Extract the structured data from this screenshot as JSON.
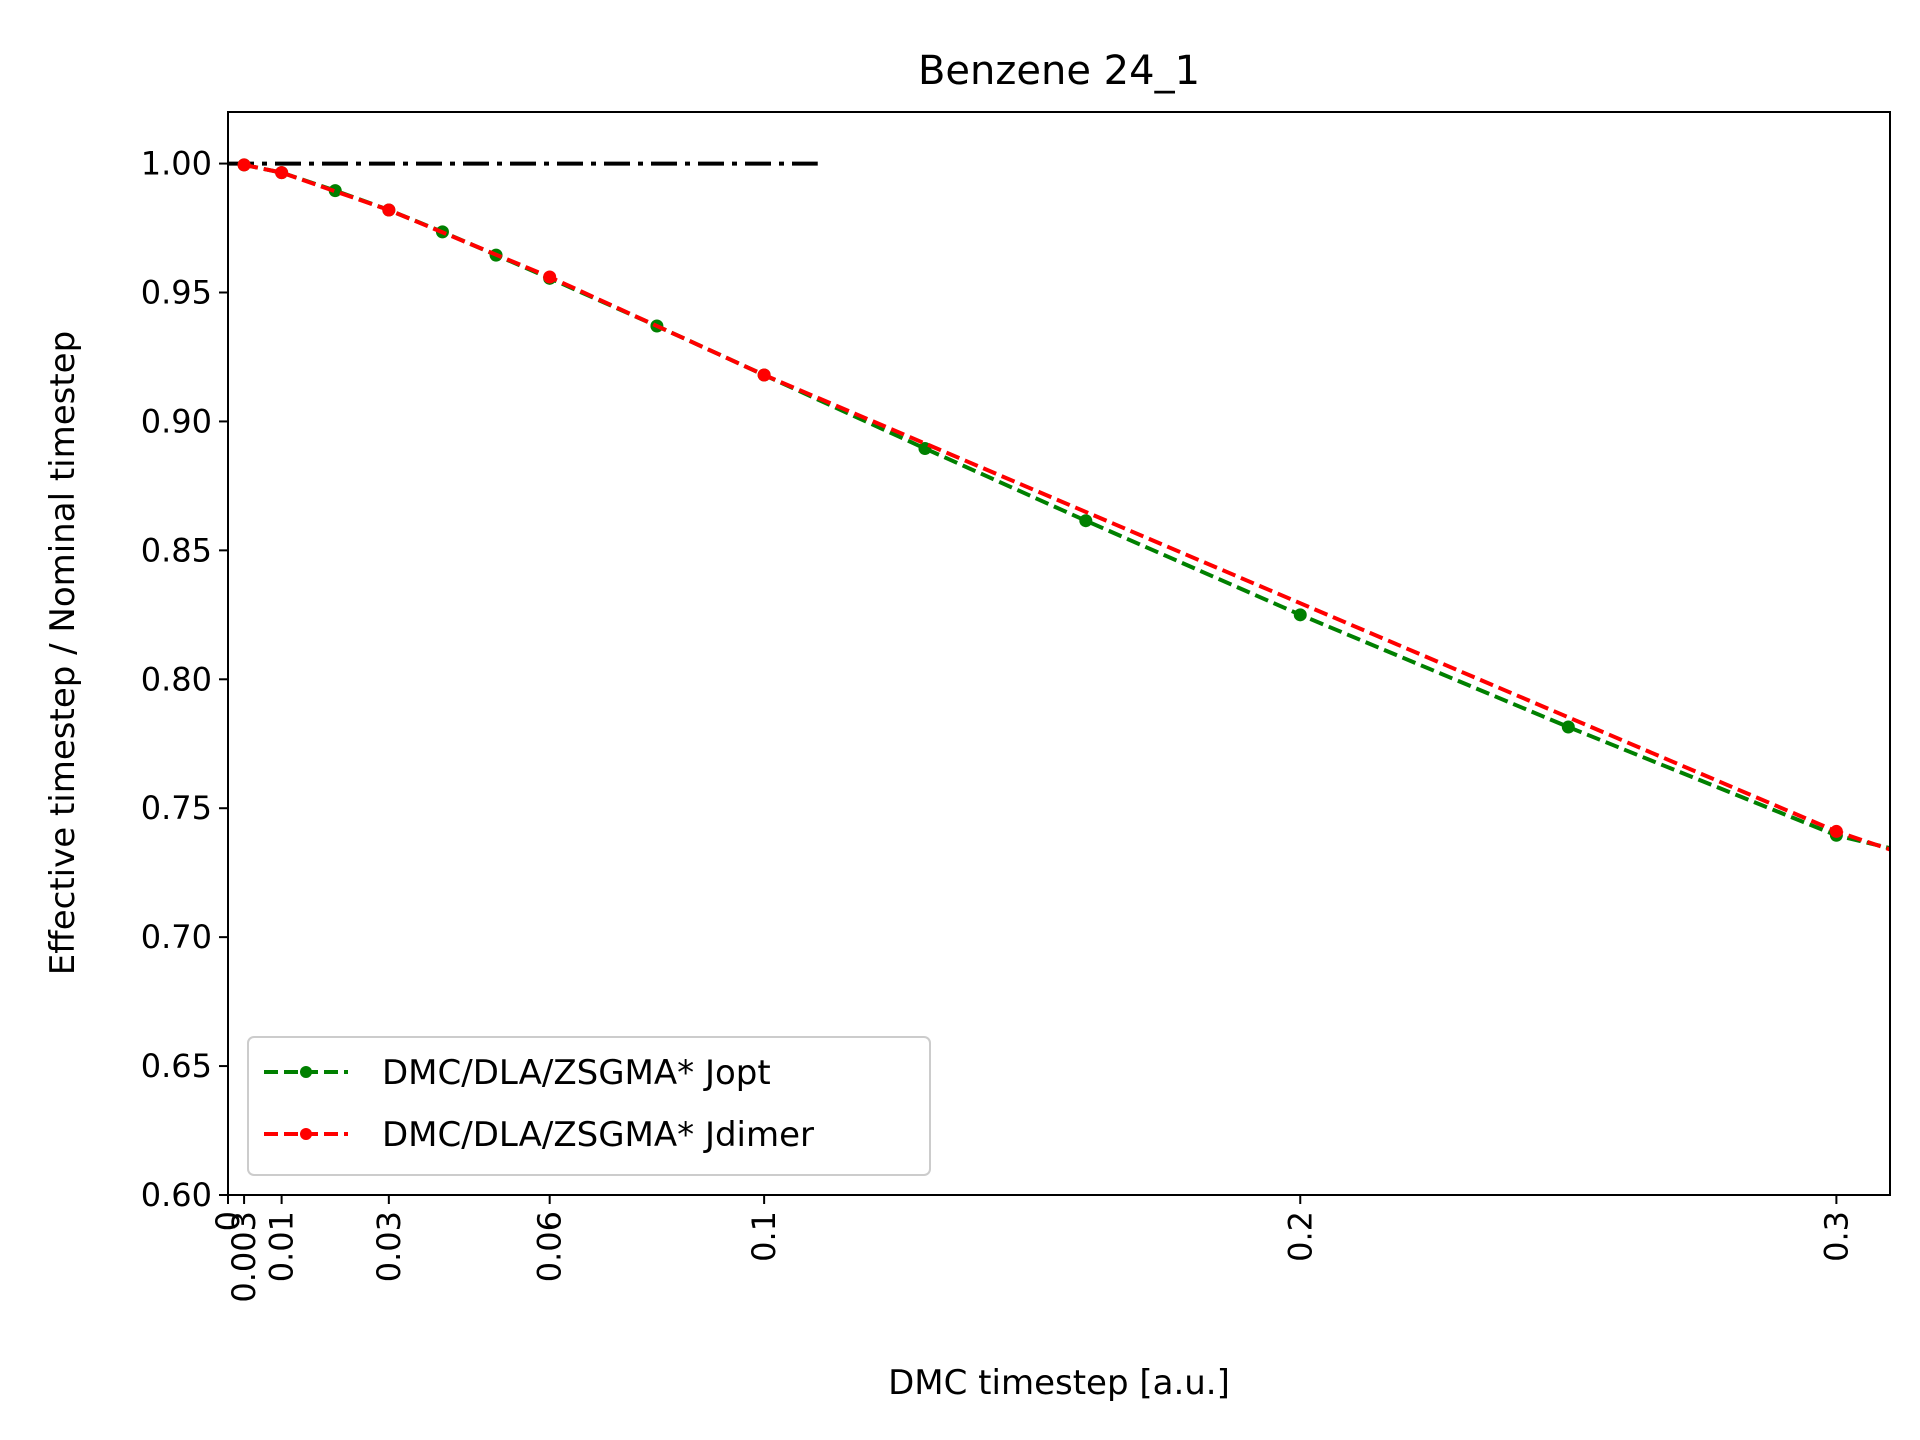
{
  "chart_data": {
    "type": "line",
    "title": "Benzene 24_1",
    "xlabel": "DMC timestep [a.u.]",
    "ylabel": "Effective timestep / Nominal timestep",
    "xlim": [
      0,
      0.31
    ],
    "ylim": [
      0.6,
      1.02
    ],
    "x_ticks": [
      0,
      0.003,
      0.01,
      0.03,
      0.06,
      0.1,
      0.2,
      0.3
    ],
    "x_tick_labels": [
      "0",
      "0.003",
      "0.01",
      "0.03",
      "0.06",
      "0.1",
      "0.2",
      "0.3"
    ],
    "y_ticks": [
      0.6,
      0.65,
      0.7,
      0.75,
      0.8,
      0.85,
      0.9,
      0.95,
      1.0
    ],
    "y_tick_labels": [
      "0.60",
      "0.65",
      "0.70",
      "0.75",
      "0.80",
      "0.85",
      "0.90",
      "0.95",
      "1.00"
    ],
    "grid": false,
    "legend_position": "lower-left",
    "reference_line": {
      "y": 1.0,
      "x_range": [
        0,
        0.11
      ],
      "style": "dash-dot",
      "color": "#000000"
    },
    "series": [
      {
        "name": "DMC/DLA/ZSGMA* Jopt",
        "color": "#008000",
        "x": [
          0.003,
          0.01,
          0.02,
          0.03,
          0.04,
          0.05,
          0.06,
          0.08,
          0.1,
          0.13,
          0.16,
          0.2,
          0.25,
          0.3
        ],
        "y": [
          0.9995,
          0.9965,
          0.9895,
          0.982,
          0.9735,
          0.9645,
          0.9555,
          0.937,
          0.918,
          0.8895,
          0.8615,
          0.825,
          0.7815,
          0.7395
        ],
        "extend_to": [
          0.31,
          0.7345
        ]
      },
      {
        "name": "DMC/DLA/ZSGMA* Jdimer",
        "color": "#ff0000",
        "x": [
          0.003,
          0.01,
          0.03,
          0.06,
          0.1,
          0.3
        ],
        "y": [
          0.9995,
          0.9965,
          0.982,
          0.956,
          0.918,
          0.741
        ],
        "extend_to": [
          0.31,
          0.734
        ]
      }
    ]
  }
}
